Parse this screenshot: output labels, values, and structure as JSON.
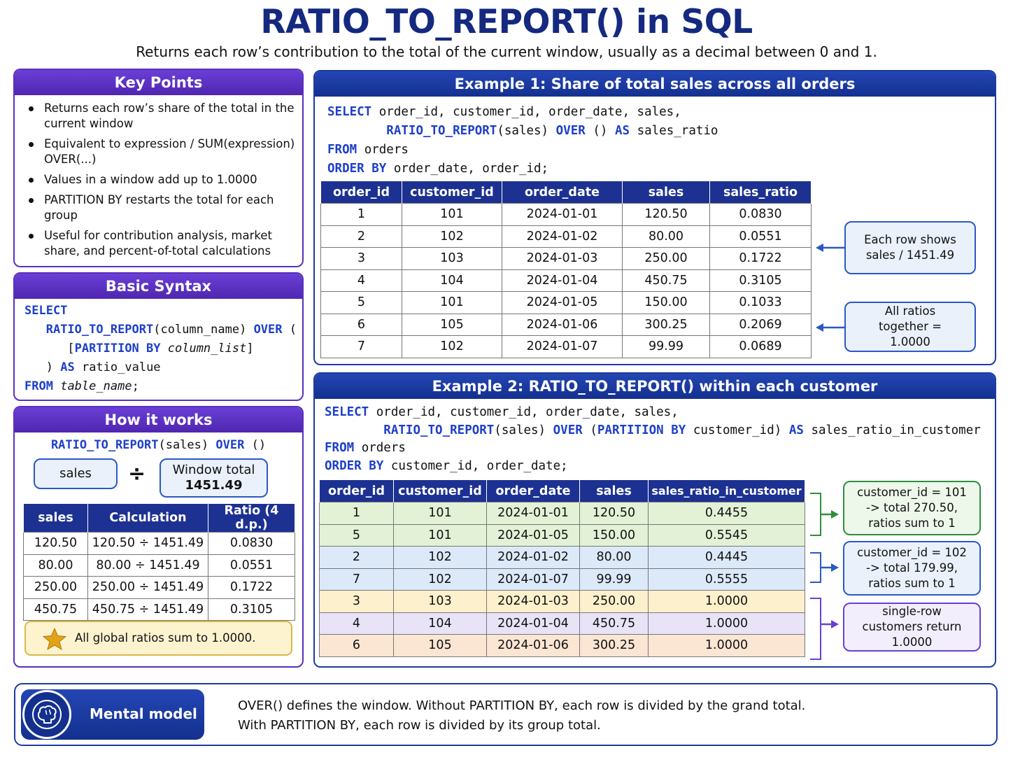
{
  "title": "RATIO_TO_REPORT() in SQL",
  "subtitle": "Returns each row’s contribution to the total of the current window, usually as a decimal between 0 and 1.",
  "key_points": {
    "heading": "Key Points",
    "items": [
      "Returns each row’s share of the total in the current window",
      "Equivalent to expression / SUM(expression) OVER(...)",
      "Values in a window add up to 1.0000",
      "PARTITION BY restarts the total for each group",
      "Useful for contribution analysis, market share, and percent-of-total calculations"
    ]
  },
  "basic_syntax": {
    "heading": "Basic Syntax",
    "select": "SELECT",
    "func": "RATIO_TO_REPORT",
    "func_args": "(column_name)",
    "over": "OVER",
    "open": "(",
    "bracket_open": "[",
    "partition_by": "PARTITION BY",
    "column_list": "column_list",
    "bracket_close": "]",
    "close": ")",
    "as": "AS",
    "alias": "ratio_value",
    "from": "FROM",
    "table": "table_name",
    "semicolon": ";"
  },
  "how_it_works": {
    "heading": "How it works",
    "func": "RATIO_TO_REPORT",
    "args": "(sales)",
    "over": "OVER",
    "parens": "()",
    "sales_label": "sales",
    "divide": "÷",
    "window_label": "Window total",
    "window_value": "1451.49",
    "table_headers": [
      "sales",
      "Calculation",
      "Ratio (4 d.p.)"
    ],
    "rows": [
      [
        "120.50",
        "120.50 ÷ 1451.49",
        "0.0830"
      ],
      [
        "80.00",
        "80.00 ÷ 1451.49",
        "0.0551"
      ],
      [
        "250.00",
        "250.00 ÷ 1451.49",
        "0.1722"
      ],
      [
        "450.75",
        "450.75 ÷ 1451.49",
        "0.3105"
      ]
    ],
    "note": "All global ratios sum to 1.0000."
  },
  "example1": {
    "heading": "Example 1: Share of total sales across all orders",
    "code": {
      "select": "SELECT",
      "cols": " order_id, customer_id, order_date, sales,",
      "func": "RATIO_TO_REPORT",
      "args": "(sales) ",
      "over": "OVER",
      "parens": " () ",
      "as": "AS",
      "alias": " sales_ratio",
      "from": "FROM",
      "table": " orders",
      "order_by": "ORDER BY",
      "order_cols": " order_date, order_id;"
    },
    "headers": [
      "order_id",
      "customer_id",
      "order_date",
      "sales",
      "sales_ratio"
    ],
    "rows": [
      [
        "1",
        "101",
        "2024-01-01",
        "120.50",
        "0.0830"
      ],
      [
        "2",
        "102",
        "2024-01-02",
        "80.00",
        "0.0551"
      ],
      [
        "3",
        "103",
        "2024-01-03",
        "250.00",
        "0.1722"
      ],
      [
        "4",
        "104",
        "2024-01-04",
        "450.75",
        "0.3105"
      ],
      [
        "5",
        "101",
        "2024-01-05",
        "150.00",
        "0.1033"
      ],
      [
        "6",
        "105",
        "2024-01-06",
        "300.25",
        "0.2069"
      ],
      [
        "7",
        "102",
        "2024-01-07",
        "99.99",
        "0.0689"
      ]
    ],
    "callout1": "Each row shows sales / 1451.49",
    "callout2": "All ratios together = 1.0000"
  },
  "example2": {
    "heading": "Example 2: RATIO_TO_REPORT() within each customer",
    "code": {
      "select": "SELECT",
      "cols": " order_id, customer_id, order_date, sales,",
      "func": "RATIO_TO_REPORT",
      "args": "(sales) ",
      "over": "OVER",
      "open": " (",
      "partition_by": "PARTITION BY",
      "part_col": " customer_id) ",
      "as": "AS",
      "alias": " sales_ratio_in_customer",
      "from": "FROM",
      "table": " orders",
      "order_by": "ORDER BY",
      "order_cols": " customer_id, order_date;"
    },
    "headers": [
      "order_id",
      "customer_id",
      "order_date",
      "sales",
      "sales_ratio_in_customer"
    ],
    "rows": [
      [
        "1",
        "101",
        "2024-01-01",
        "120.50",
        "0.4455"
      ],
      [
        "5",
        "101",
        "2024-01-05",
        "150.00",
        "0.5545"
      ],
      [
        "2",
        "102",
        "2024-01-02",
        "80.00",
        "0.4445"
      ],
      [
        "7",
        "102",
        "2024-01-07",
        "99.99",
        "0.5555"
      ],
      [
        "3",
        "103",
        "2024-01-03",
        "250.00",
        "1.0000"
      ],
      [
        "4",
        "104",
        "2024-01-04",
        "450.75",
        "1.0000"
      ],
      [
        "6",
        "105",
        "2024-01-06",
        "300.25",
        "1.0000"
      ]
    ],
    "row_colors": [
      "#e3f2d6",
      "#e3f2d6",
      "#dce9f8",
      "#dce9f8",
      "#fdf0cc",
      "#e9e3f8",
      "#fbe5d3"
    ],
    "callout1": "customer_id = 101 -> total 270.50, ratios sum to 1",
    "callout2": "customer_id = 102 -> total 179.99, ratios sum to 1",
    "callout3": "single-row customers return 1.0000"
  },
  "mental_model": {
    "label": "Mental model",
    "line1": "OVER() defines the window. Without PARTITION BY, each row is divided by the grand total.",
    "line2": "With PARTITION BY, each row is divided by its group total."
  },
  "colors": {
    "title": "#14297f",
    "purple": "#5a2fbf",
    "blue": "#1c3c9e",
    "keyword": "#1d3fc9",
    "green": "#2e8f3b"
  }
}
